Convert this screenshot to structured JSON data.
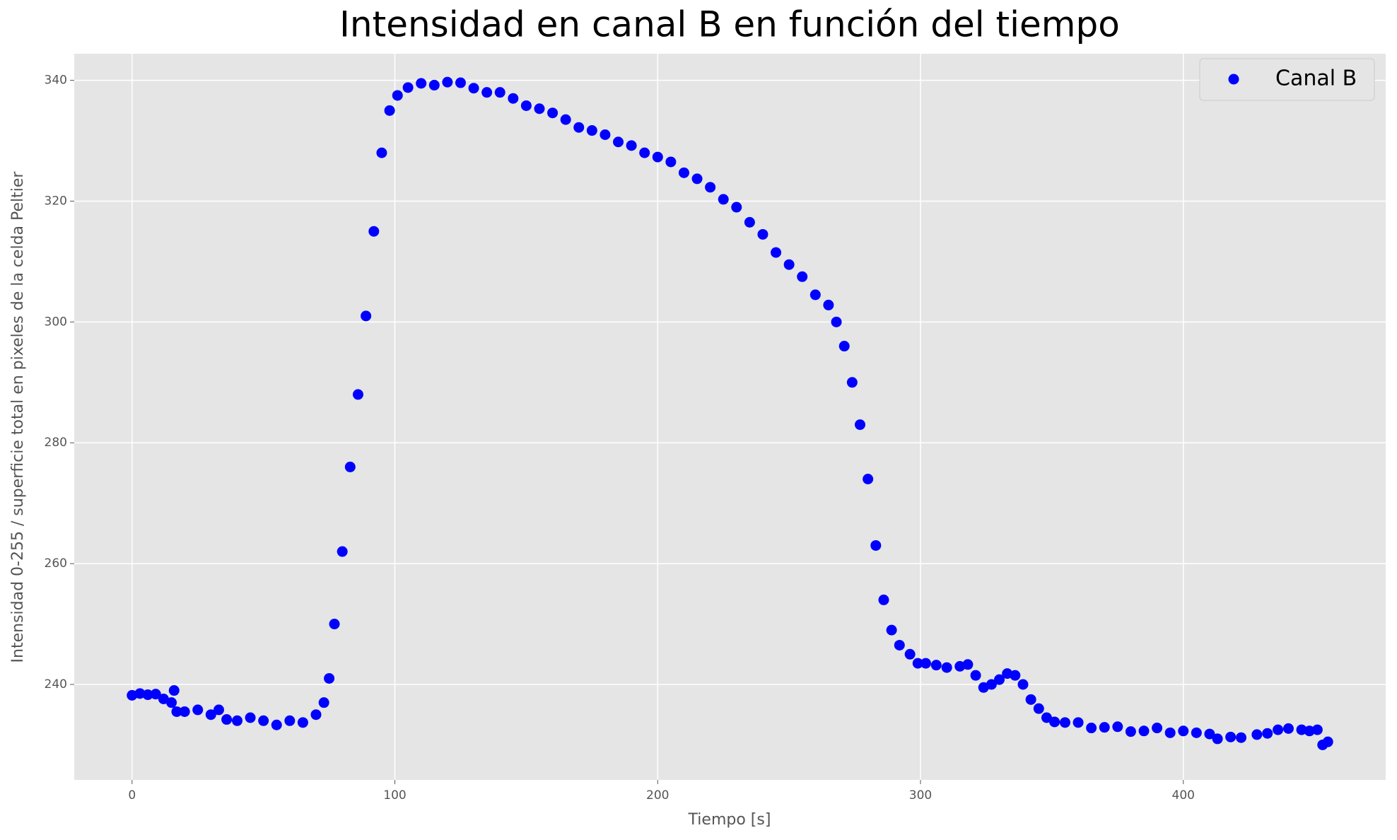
{
  "chart_data": {
    "type": "scatter",
    "title": "Intensidad en canal B en función del tiempo",
    "x_label": "Tiempo [s]",
    "y_label": "Intensidad 0-255 / superficie total en pixeles de la celda Peltier",
    "series": [
      {
        "name": "Canal B",
        "color": "#0000ff",
        "x": [
          0,
          3,
          6,
          9,
          12,
          15,
          16,
          17,
          20,
          25,
          30,
          33,
          36,
          40,
          45,
          50,
          55,
          60,
          65,
          70,
          73,
          75,
          77,
          80,
          83,
          86,
          89,
          92,
          95,
          98,
          101,
          105,
          110,
          115,
          120,
          125,
          130,
          135,
          140,
          145,
          150,
          155,
          160,
          165,
          170,
          175,
          180,
          185,
          190,
          195,
          200,
          205,
          210,
          215,
          220,
          225,
          230,
          235,
          240,
          245,
          250,
          255,
          260,
          265,
          268,
          271,
          274,
          277,
          280,
          283,
          286,
          289,
          292,
          296,
          299,
          302,
          306,
          310,
          315,
          318,
          321,
          324,
          327,
          330,
          333,
          336,
          339,
          342,
          345,
          348,
          351,
          355,
          360,
          365,
          370,
          375,
          380,
          385,
          390,
          395,
          400,
          405,
          410,
          413,
          418,
          422,
          428,
          432,
          436,
          440,
          445,
          448,
          451,
          453,
          455
        ],
        "values": [
          238.2,
          238.5,
          238.3,
          238.4,
          237.6,
          237,
          239,
          235.5,
          235.5,
          235.8,
          235,
          235.8,
          234.2,
          234,
          234.5,
          234,
          233.3,
          234,
          233.7,
          235,
          237,
          241,
          250,
          262,
          276,
          288,
          301,
          315,
          328,
          335,
          337.5,
          338.8,
          339.5,
          339.2,
          339.7,
          339.6,
          338.7,
          338,
          338,
          337,
          335.8,
          335.3,
          334.6,
          333.5,
          332.2,
          331.7,
          331,
          329.8,
          329.2,
          328,
          327.3,
          326.5,
          324.7,
          323.7,
          322.3,
          320.3,
          319,
          316.5,
          314.5,
          311.5,
          309.5,
          307.5,
          304.5,
          302.8,
          300,
          296,
          290,
          283,
          274,
          263,
          254,
          249,
          246.5,
          245,
          243.5,
          243.5,
          243.2,
          242.8,
          243,
          243.3,
          241.5,
          239.5,
          240,
          240.8,
          241.8,
          241.5,
          240,
          237.5,
          236,
          234.5,
          233.8,
          233.7,
          233.7,
          232.8,
          232.9,
          233,
          232.2,
          232.3,
          232.8,
          232,
          232.3,
          232,
          231.8,
          231,
          231.3,
          231.2,
          231.7,
          231.9,
          232.5,
          232.7,
          232.5,
          232.3,
          232.5,
          230,
          230.5
        ]
      }
    ],
    "xlim": [
      -22,
      477
    ],
    "ylim": [
      224.2,
      344.4
    ],
    "xticks": [
      0,
      100,
      200,
      300,
      400
    ],
    "yticks": [
      240,
      260,
      280,
      300,
      320,
      340
    ],
    "grid": true,
    "legend": "upper right"
  }
}
